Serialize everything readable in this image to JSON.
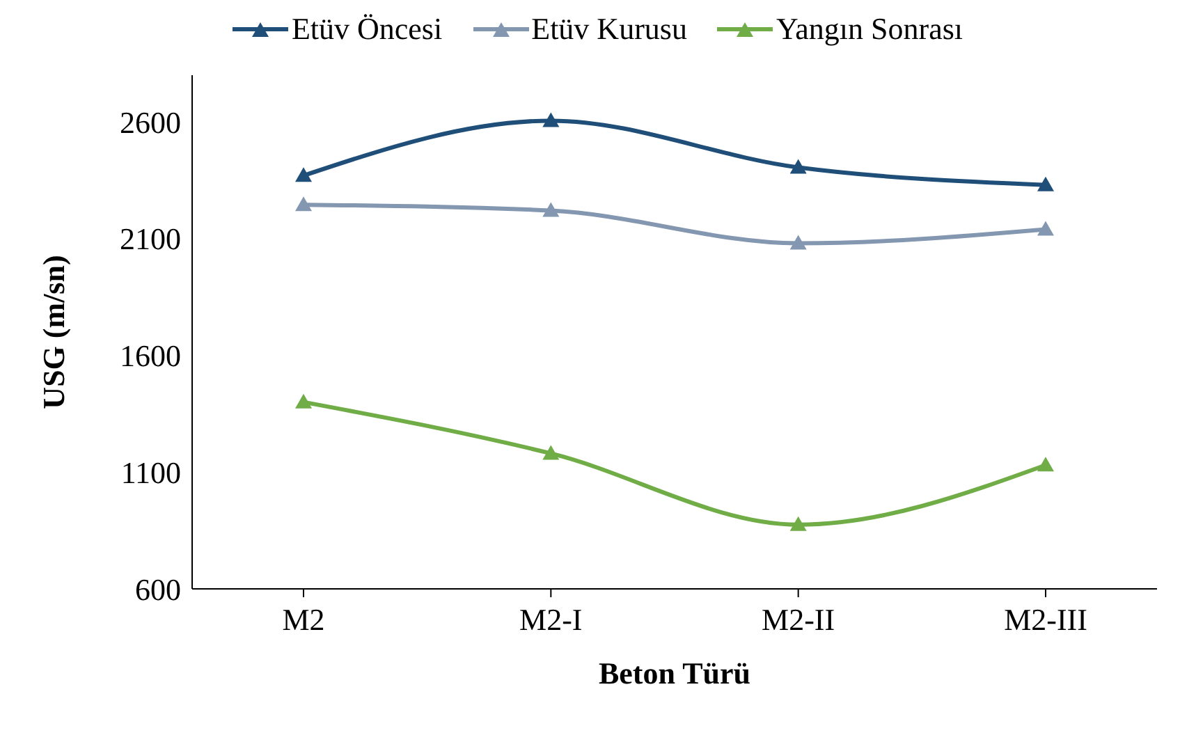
{
  "chart_data": {
    "type": "line",
    "xlabel": "Beton Türü",
    "ylabel": "USG (m/sn)",
    "categories": [
      "M2",
      "M2-I",
      "M2-II",
      "M2-III"
    ],
    "series": [
      {
        "name": "Etüv Öncesi",
        "color": "#1f4e79",
        "values": [
          2370,
          2605,
          2405,
          2330
        ]
      },
      {
        "name": "Etüv Kurusu",
        "color": "#8497b0",
        "values": [
          2245,
          2220,
          2080,
          2140
        ]
      },
      {
        "name": "Yangın Sonrası",
        "color": "#70ad47",
        "values": [
          1400,
          1180,
          875,
          1130
        ]
      }
    ],
    "ylim": [
      600,
      2800
    ],
    "yticks": [
      600,
      1100,
      1600,
      2100,
      2600
    ],
    "grid": false,
    "legend": "top",
    "marker": "triangle",
    "line_style": "solid"
  }
}
